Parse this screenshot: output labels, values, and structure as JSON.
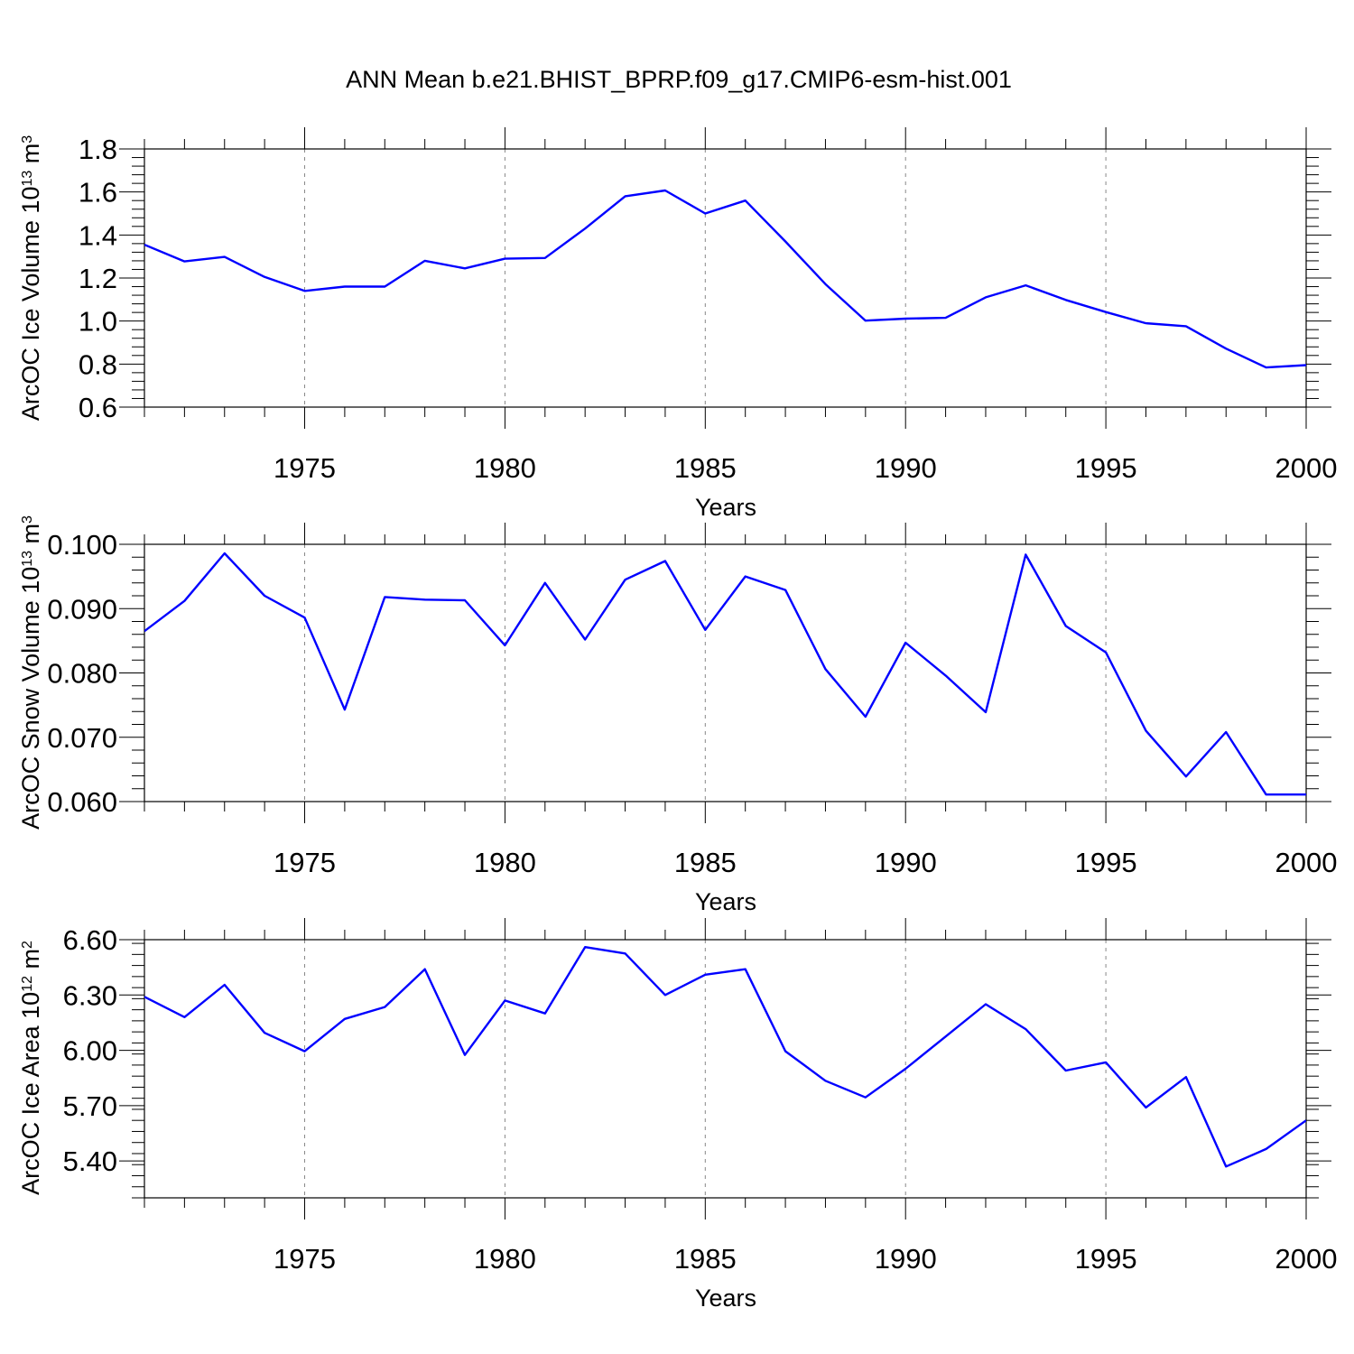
{
  "title": "ANN Mean b.e21.BHIST_BPRP.f09_g17.CMIP6-esm-hist.001",
  "chart_data": [
    {
      "type": "line",
      "title": "ANN Mean b.e21.BHIST_BPRP.f09_g17.CMIP6-esm-hist.001",
      "xlabel": "Years",
      "ylabel": "ArcOC Ice Volume 10",
      "ylabel_exp": "13",
      "ylabel_unit": " m",
      "ylabel_unit_exp": "3",
      "xlim": [
        1971,
        2000
      ],
      "ylim": [
        0.6,
        1.8
      ],
      "yticks": [
        0.6,
        0.8,
        1.0,
        1.2,
        1.4,
        1.6,
        1.8
      ],
      "ytick_labels": [
        "0.6",
        "0.8",
        "1.0",
        "1.2",
        "1.4",
        "1.6",
        "1.8"
      ],
      "xticks": [
        1975,
        1980,
        1985,
        1990,
        1995,
        2000
      ],
      "xtick_labels": [
        "1975",
        "1980",
        "1985",
        "1990",
        "1995",
        "2000"
      ],
      "grid": "vertical dashed at major x ticks",
      "series": [
        {
          "name": "ArcOC Ice Volume",
          "color": "#0000ff",
          "x": [
            1971,
            1972,
            1973,
            1974,
            1975,
            1976,
            1977,
            1978,
            1979,
            1980,
            1981,
            1982,
            1983,
            1984,
            1985,
            1986,
            1987,
            1988,
            1989,
            1990,
            1991,
            1992,
            1993,
            1994,
            1995,
            1996,
            1997,
            1998,
            1999,
            2000
          ],
          "values": [
            1.355,
            1.277,
            1.298,
            1.205,
            1.14,
            1.16,
            1.16,
            1.28,
            1.245,
            1.29,
            1.293,
            1.43,
            1.58,
            1.607,
            1.5,
            1.56,
            1.37,
            1.172,
            1.002,
            1.011,
            1.015,
            1.11,
            1.166,
            1.098,
            1.042,
            0.99,
            0.976,
            0.872,
            0.784,
            0.795
          ]
        }
      ]
    },
    {
      "type": "line",
      "xlabel": "Years",
      "ylabel": "ArcOC Snow Volume 10",
      "ylabel_exp": "13",
      "ylabel_unit": " m",
      "ylabel_unit_exp": "3",
      "xlim": [
        1971,
        2000
      ],
      "ylim": [
        0.06,
        0.1
      ],
      "yticks": [
        0.06,
        0.07,
        0.08,
        0.09,
        0.1
      ],
      "ytick_labels": [
        "0.060",
        "0.070",
        "0.080",
        "0.090",
        "0.100"
      ],
      "xticks": [
        1975,
        1980,
        1985,
        1990,
        1995,
        2000
      ],
      "xtick_labels": [
        "1975",
        "1980",
        "1985",
        "1990",
        "1995",
        "2000"
      ],
      "grid": "vertical dashed at major x ticks",
      "series": [
        {
          "name": "ArcOC Snow Volume",
          "color": "#0000ff",
          "x": [
            1971,
            1972,
            1973,
            1974,
            1975,
            1976,
            1977,
            1978,
            1979,
            1980,
            1981,
            1982,
            1983,
            1984,
            1985,
            1986,
            1987,
            1988,
            1989,
            1990,
            1991,
            1992,
            1993,
            1994,
            1995,
            1996,
            1997,
            1998,
            1999,
            2000
          ],
          "values": [
            0.0865,
            0.0912,
            0.0986,
            0.092,
            0.0886,
            0.0743,
            0.0918,
            0.0914,
            0.0913,
            0.0843,
            0.094,
            0.0852,
            0.0945,
            0.0974,
            0.0867,
            0.095,
            0.0929,
            0.0806,
            0.0732,
            0.0847,
            0.0796,
            0.0739,
            0.0984,
            0.0873,
            0.0832,
            0.071,
            0.0639,
            0.0708,
            0.0611,
            0.0611
          ]
        }
      ]
    },
    {
      "type": "line",
      "xlabel": "Years",
      "ylabel": "ArcOC Ice Area 10",
      "ylabel_exp": "12",
      "ylabel_unit": " m",
      "ylabel_unit_exp": "2",
      "xlim": [
        1971,
        2000
      ],
      "ylim": [
        5.2,
        6.6
      ],
      "yticks": [
        5.4,
        5.7,
        6.0,
        6.3,
        6.6
      ],
      "ytick_labels": [
        "5.40",
        "5.70",
        "6.00",
        "6.30",
        "6.60"
      ],
      "xticks": [
        1975,
        1980,
        1985,
        1990,
        1995,
        2000
      ],
      "xtick_labels": [
        "1975",
        "1980",
        "1985",
        "1990",
        "1995",
        "2000"
      ],
      "grid": "vertical dashed at major x ticks",
      "series": [
        {
          "name": "ArcOC Ice Area",
          "color": "#0000ff",
          "x": [
            1971,
            1972,
            1973,
            1974,
            1975,
            1976,
            1977,
            1978,
            1979,
            1980,
            1981,
            1982,
            1983,
            1984,
            1985,
            1986,
            1987,
            1988,
            1989,
            1990,
            1991,
            1992,
            1993,
            1994,
            1995,
            1996,
            1997,
            1998,
            1999,
            2000
          ],
          "values": [
            6.29,
            6.18,
            6.355,
            6.095,
            5.995,
            6.17,
            6.235,
            6.44,
            5.975,
            6.27,
            6.2,
            6.56,
            6.525,
            6.3,
            6.41,
            6.44,
            5.995,
            5.835,
            5.745,
            5.9,
            6.075,
            6.25,
            6.115,
            5.89,
            5.935,
            5.69,
            5.855,
            5.37,
            5.465,
            5.62
          ]
        }
      ]
    }
  ]
}
